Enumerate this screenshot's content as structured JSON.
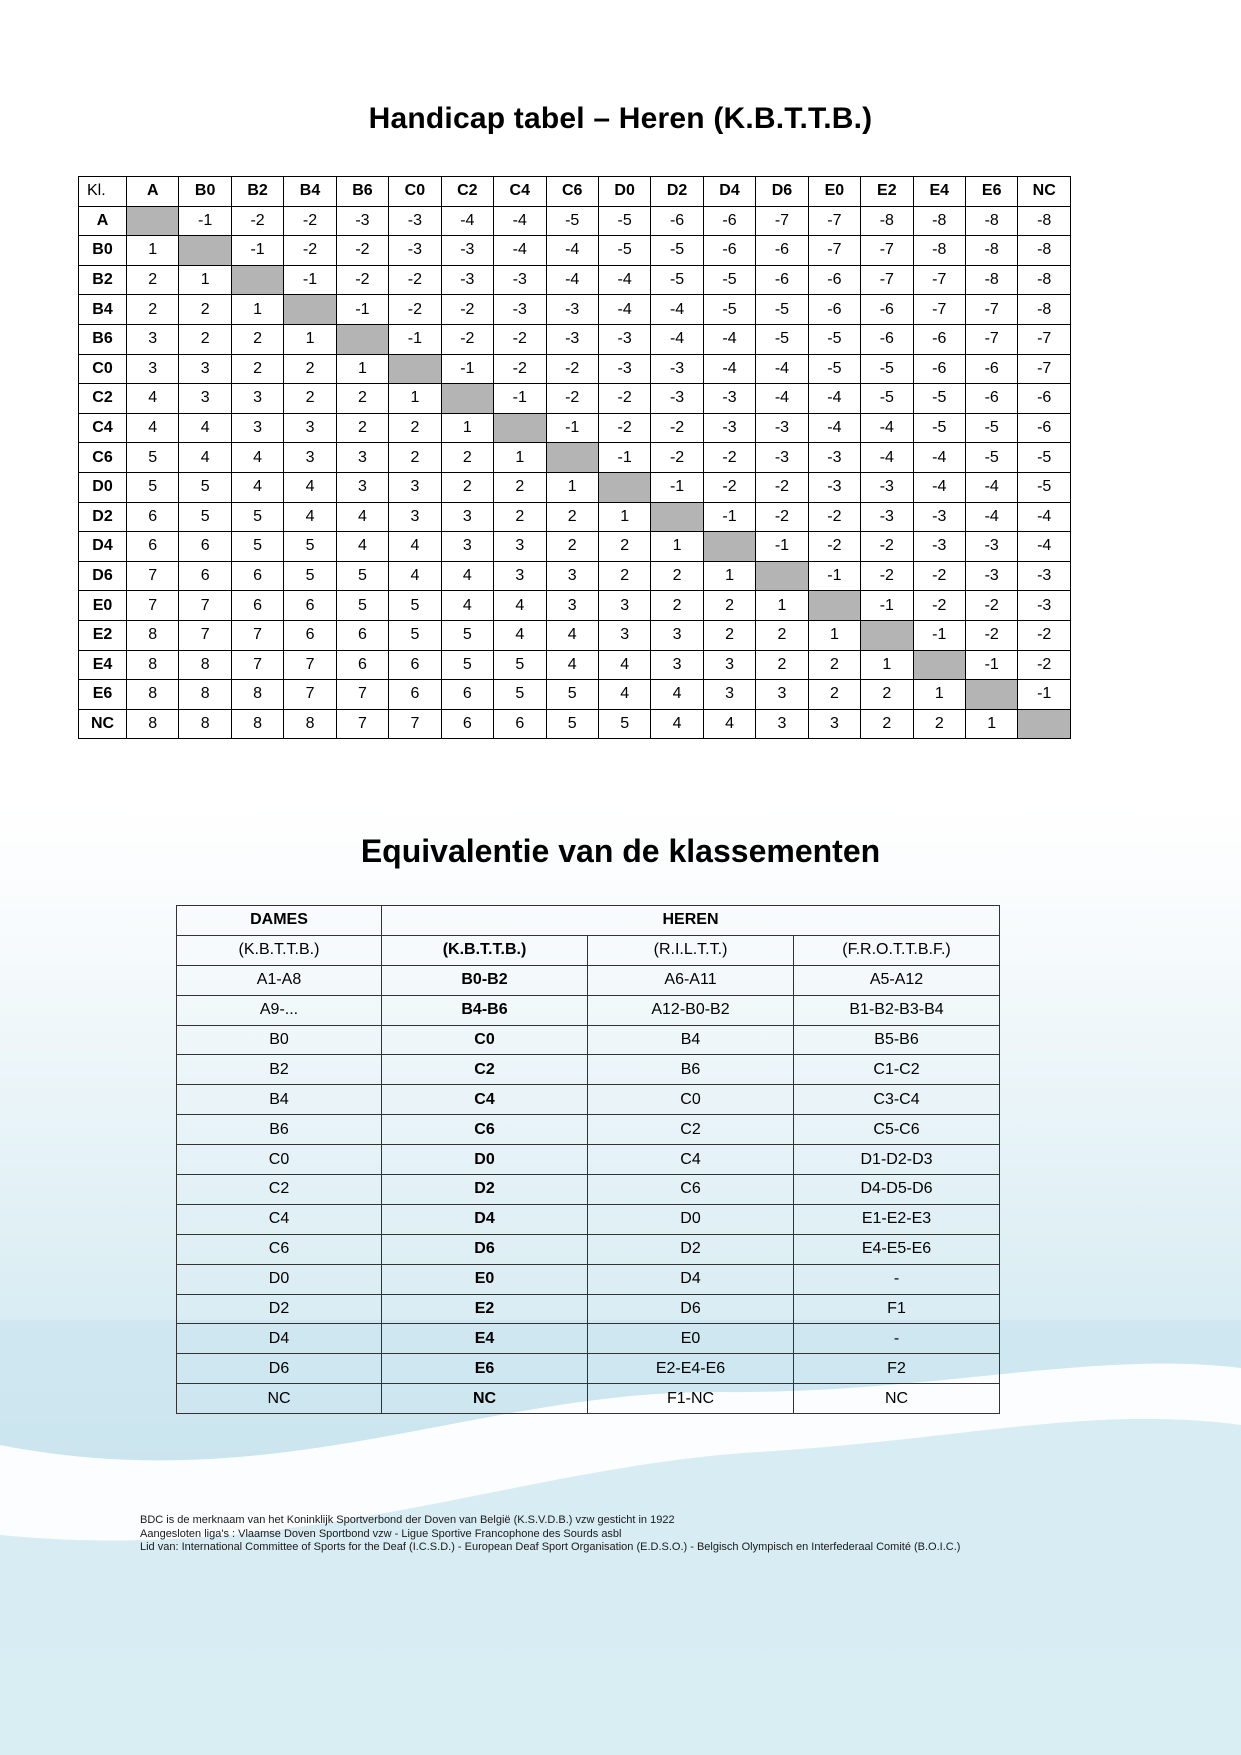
{
  "page": {
    "title1": "Handicap tabel – Heren (K.B.T.T.B.)",
    "title2": "Equivalentie van de klassementen"
  },
  "colors": {
    "diagonal_gray": "#b4b4b4",
    "page_blue": "#cfe7f0"
  },
  "handicap_table": {
    "header": [
      "Kl.",
      "A",
      "B0",
      "B2",
      "B4",
      "B6",
      "C0",
      "C2",
      "C4",
      "C6",
      "D0",
      "D2",
      "D4",
      "D6",
      "E0",
      "E2",
      "E4",
      "E6",
      "NC"
    ],
    "rows": [
      {
        "label": "A",
        "values": [
          null,
          -1,
          -2,
          -2,
          -3,
          -3,
          -4,
          -4,
          -5,
          -5,
          -6,
          -6,
          -7,
          -7,
          -8,
          -8,
          -8,
          -8
        ]
      },
      {
        "label": "B0",
        "values": [
          1,
          null,
          -1,
          -2,
          -2,
          -3,
          -3,
          -4,
          -4,
          -5,
          -5,
          -6,
          -6,
          -7,
          -7,
          -8,
          -8,
          -8
        ]
      },
      {
        "label": "B2",
        "values": [
          2,
          1,
          null,
          -1,
          -2,
          -2,
          -3,
          -3,
          -4,
          -4,
          -5,
          -5,
          -6,
          -6,
          -7,
          -7,
          -8,
          -8
        ]
      },
      {
        "label": "B4",
        "values": [
          2,
          2,
          1,
          null,
          -1,
          -2,
          -2,
          -3,
          -3,
          -4,
          -4,
          -5,
          -5,
          -6,
          -6,
          -7,
          -7,
          -8
        ]
      },
      {
        "label": "B6",
        "values": [
          3,
          2,
          2,
          1,
          null,
          -1,
          -2,
          -2,
          -3,
          -3,
          -4,
          -4,
          -5,
          -5,
          -6,
          -6,
          -7,
          -7
        ]
      },
      {
        "label": "C0",
        "values": [
          3,
          3,
          2,
          2,
          1,
          null,
          -1,
          -2,
          -2,
          -3,
          -3,
          -4,
          -4,
          -5,
          -5,
          -6,
          -6,
          -7
        ]
      },
      {
        "label": "C2",
        "values": [
          4,
          3,
          3,
          2,
          2,
          1,
          null,
          -1,
          -2,
          -2,
          -3,
          -3,
          -4,
          -4,
          -5,
          -5,
          -6,
          -6
        ]
      },
      {
        "label": "C4",
        "values": [
          4,
          4,
          3,
          3,
          2,
          2,
          1,
          null,
          -1,
          -2,
          -2,
          -3,
          -3,
          -4,
          -4,
          -5,
          -5,
          -6
        ]
      },
      {
        "label": "C6",
        "values": [
          5,
          4,
          4,
          3,
          3,
          2,
          2,
          1,
          null,
          -1,
          -2,
          -2,
          -3,
          -3,
          -4,
          -4,
          -5,
          -5
        ]
      },
      {
        "label": "D0",
        "values": [
          5,
          5,
          4,
          4,
          3,
          3,
          2,
          2,
          1,
          null,
          -1,
          -2,
          -2,
          -3,
          -3,
          -4,
          -4,
          -5
        ]
      },
      {
        "label": "D2",
        "values": [
          6,
          5,
          5,
          4,
          4,
          3,
          3,
          2,
          2,
          1,
          null,
          -1,
          -2,
          -2,
          -3,
          -3,
          -4,
          -4
        ]
      },
      {
        "label": "D4",
        "values": [
          6,
          6,
          5,
          5,
          4,
          4,
          3,
          3,
          2,
          2,
          1,
          null,
          -1,
          -2,
          -2,
          -3,
          -3,
          -4
        ]
      },
      {
        "label": "D6",
        "values": [
          7,
          6,
          6,
          5,
          5,
          4,
          4,
          3,
          3,
          2,
          2,
          1,
          null,
          -1,
          -2,
          -2,
          -3,
          -3
        ]
      },
      {
        "label": "E0",
        "values": [
          7,
          7,
          6,
          6,
          5,
          5,
          4,
          4,
          3,
          3,
          2,
          2,
          1,
          null,
          -1,
          -2,
          -2,
          -3
        ]
      },
      {
        "label": "E2",
        "values": [
          8,
          7,
          7,
          6,
          6,
          5,
          5,
          4,
          4,
          3,
          3,
          2,
          2,
          1,
          null,
          -1,
          -2,
          -2
        ]
      },
      {
        "label": "E4",
        "values": [
          8,
          8,
          7,
          7,
          6,
          6,
          5,
          5,
          4,
          4,
          3,
          3,
          2,
          2,
          1,
          null,
          -1,
          -2
        ]
      },
      {
        "label": "E6",
        "values": [
          8,
          8,
          8,
          7,
          7,
          6,
          6,
          5,
          5,
          4,
          4,
          3,
          3,
          2,
          2,
          1,
          null,
          -1
        ]
      },
      {
        "label": "NC",
        "values": [
          8,
          8,
          8,
          8,
          7,
          7,
          6,
          6,
          5,
          5,
          4,
          4,
          3,
          3,
          2,
          2,
          1,
          null
        ]
      }
    ]
  },
  "equivalence_table": {
    "group_headers": [
      "DAMES",
      "HEREN"
    ],
    "col_headers": [
      "(K.B.T.T.B.)",
      "(K.B.T.T.B.)",
      "(R.I.L.T.T.)",
      "(F.R.O.T.T.B.F.)"
    ],
    "rows": [
      [
        "A1-A8",
        "B0-B2",
        "A6-A11",
        "A5-A12"
      ],
      [
        "A9-...",
        "B4-B6",
        "A12-B0-B2",
        "B1-B2-B3-B4"
      ],
      [
        "B0",
        "C0",
        "B4",
        "B5-B6"
      ],
      [
        "B2",
        "C2",
        "B6",
        "C1-C2"
      ],
      [
        "B4",
        "C4",
        "C0",
        "C3-C4"
      ],
      [
        "B6",
        "C6",
        "C2",
        "C5-C6"
      ],
      [
        "C0",
        "D0",
        "C4",
        "D1-D2-D3"
      ],
      [
        "C2",
        "D2",
        "C6",
        "D4-D5-D6"
      ],
      [
        "C4",
        "D4",
        "D0",
        "E1-E2-E3"
      ],
      [
        "C6",
        "D6",
        "D2",
        "E4-E5-E6"
      ],
      [
        "D0",
        "E0",
        "D4",
        "-"
      ],
      [
        "D2",
        "E2",
        "D6",
        "F1"
      ],
      [
        "D4",
        "E4",
        "E0",
        "-"
      ],
      [
        "D6",
        "E6",
        "E2-E4-E6",
        "F2"
      ],
      [
        "NC",
        "NC",
        "F1-NC",
        "NC"
      ]
    ]
  },
  "footer": {
    "lines": [
      "BDC is de merknaam van het Koninklijk Sportverbond der Doven van België (K.S.V.D.B.) vzw gesticht in 1922",
      "Aangesloten liga's : Vlaamse Doven Sportbond vzw - Ligue Sportive Francophone des Sourds asbl",
      "Lid van: International Committee of Sports for the Deaf (I.C.S.D.) - European Deaf Sport Organisation (E.D.S.O.) - Belgisch Olympisch en Interfederaal Comité (B.O.I.C.)"
    ]
  }
}
